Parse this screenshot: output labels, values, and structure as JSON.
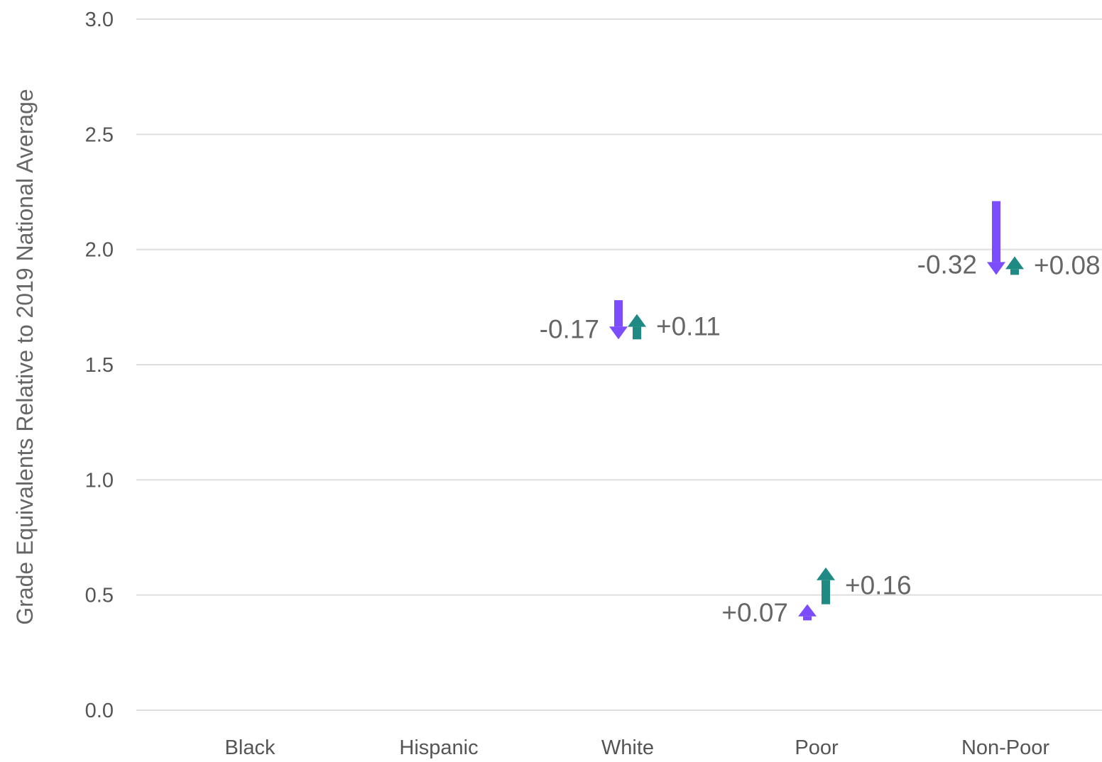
{
  "chart_data": {
    "type": "arrow",
    "categories": [
      "Black",
      "Hispanic",
      "White",
      "Poor",
      "Non-Poor"
    ],
    "ylabel": "Grade Equivalents Relative to 2019 National Average",
    "ylim": [
      0,
      3
    ],
    "yticks": [
      "0.0",
      "0.5",
      "1.0",
      "1.5",
      "2.0",
      "2.5",
      "3.0"
    ],
    "grid": true,
    "colors": {
      "series1": "#7c4dff",
      "series2": "#1f8a84"
    },
    "series": [
      {
        "color_key": "series1",
        "points": [
          {
            "category": "White",
            "from": 1.78,
            "to": 1.61,
            "label": "-0.17"
          },
          {
            "category": "Poor",
            "from": 0.39,
            "to": 0.46,
            "label": "+0.07"
          },
          {
            "category": "Non-Poor",
            "from": 2.21,
            "to": 1.89,
            "label": "-0.32"
          }
        ]
      },
      {
        "color_key": "series2",
        "points": [
          {
            "category": "White",
            "from": 1.61,
            "to": 1.72,
            "label": "+0.11"
          },
          {
            "category": "Poor",
            "from": 0.46,
            "to": 0.62,
            "label": "+0.16"
          },
          {
            "category": "Non-Poor",
            "from": 1.89,
            "to": 1.97,
            "label": "+0.08"
          }
        ]
      }
    ]
  }
}
